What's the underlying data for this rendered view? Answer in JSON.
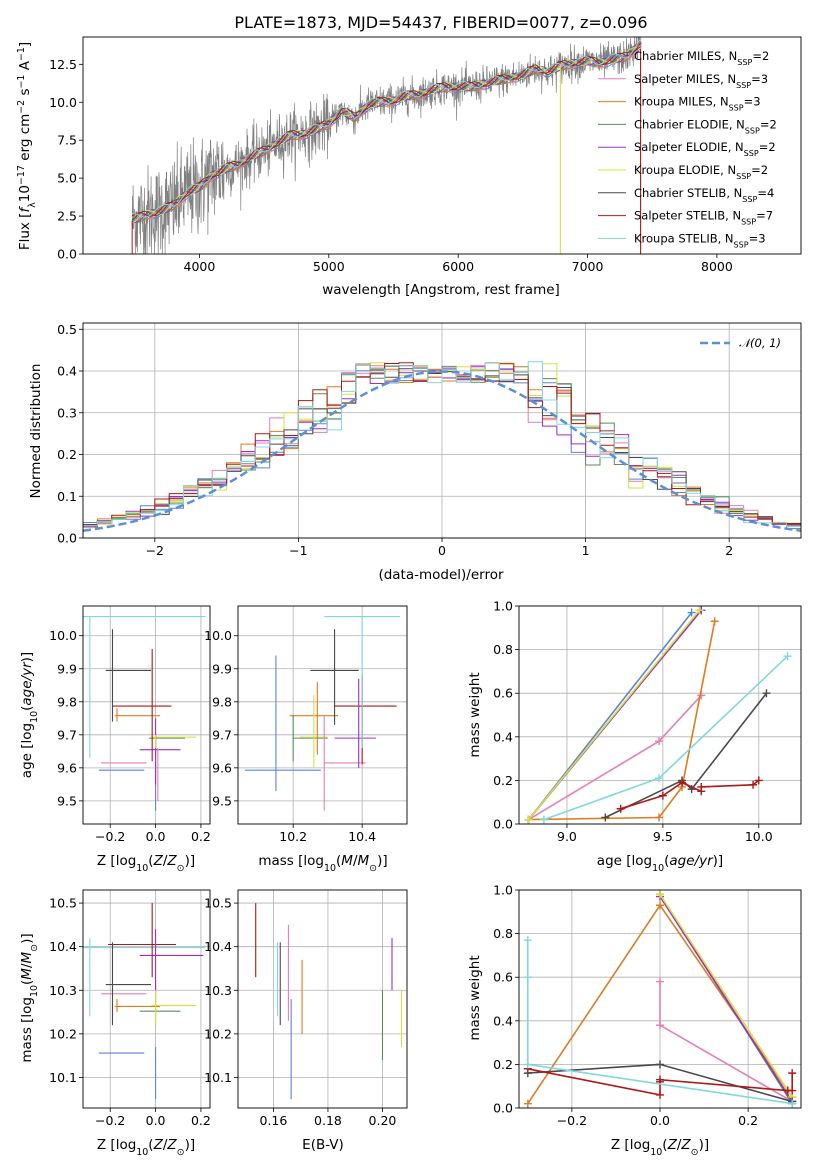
{
  "chart_data": [
    {
      "type": "line",
      "title": "PLATE=1873, MJD=54437, FIBERID=0077, z=0.096",
      "xlabel": "wavelength [Angstrom, rest frame]",
      "ylabel": "Flux [f_λ 10^-17 erg cm^-2 s^-1 A^-1]",
      "xlim": [
        3100,
        8650
      ],
      "ylim": [
        0,
        14.3
      ],
      "xticks": [
        4000,
        5000,
        6000,
        7000,
        8000
      ],
      "yticks": [
        0.0,
        2.5,
        5.0,
        7.5,
        10.0,
        12.5
      ],
      "grid": false,
      "legend_position": "top-right",
      "data_color": "#808080",
      "spectrum_anchors": {
        "x": [
          3500,
          3600,
          3700,
          3800,
          3900,
          4000,
          4100,
          4200,
          4300,
          4400,
          4500,
          4600,
          4700,
          4800,
          4900,
          5000,
          5100,
          5200,
          5300,
          5400,
          5500,
          5600,
          5700,
          5800,
          5900,
          6000,
          6100,
          6200,
          6300,
          6400,
          6500,
          6600,
          6700,
          6800,
          6900,
          7000,
          7100,
          7200,
          7300,
          7400
        ],
        "y": [
          2.3,
          2.6,
          2.8,
          3.2,
          4.0,
          4.4,
          5.2,
          5.6,
          5.9,
          6.4,
          6.8,
          7.3,
          7.8,
          7.9,
          8.2,
          8.6,
          9.4,
          9.0,
          9.8,
          10.0,
          10.1,
          10.4,
          10.5,
          10.8,
          11.0,
          11.0,
          11.0,
          11.2,
          11.4,
          11.6,
          11.8,
          12.2,
          12.0,
          12.4,
          12.6,
          12.7,
          12.6,
          12.8,
          13.0,
          13.8
        ]
      },
      "series": [
        {
          "name": "Chabrier MILES, N_SSP=2",
          "color": "#5b85d6"
        },
        {
          "name": "Salpeter MILES, N_SSP=3",
          "color": "#e67fb4"
        },
        {
          "name": "Kroupa MILES, N_SSP=3",
          "color": "#e07b20"
        },
        {
          "name": "Chabrier ELODIE, N_SSP=2",
          "color": "#5a8f5a"
        },
        {
          "name": "Salpeter ELODIE, N_SSP=2",
          "color": "#9b30c8"
        },
        {
          "name": "Kroupa ELODIE, N_SSP=2",
          "color": "#d8e03c"
        },
        {
          "name": "Chabrier STELIB, N_SSP=4",
          "color": "#4a4a4a"
        },
        {
          "name": "Salpeter STELIB, N_SSP=7",
          "color": "#b01818"
        },
        {
          "name": "Kroupa STELIB, N_SSP=3",
          "color": "#7fd8e0"
        }
      ]
    },
    {
      "type": "line",
      "xlabel": "(data-model)/error",
      "ylabel": "Normed distribution",
      "xlim": [
        -2.5,
        2.5
      ],
      "ylim": [
        0,
        0.515
      ],
      "xticks": [
        -2,
        -1,
        0,
        1,
        2
      ],
      "yticks": [
        0.0,
        0.1,
        0.2,
        0.3,
        0.4,
        0.5
      ],
      "grid": true,
      "legend_position": "top-right",
      "gaussian_label": "𝒩(0, 1)",
      "gaussian_color": "#5b8fd6",
      "histogram_bin_width": 0.1
    },
    {
      "type": "scatter",
      "xlabel": "Z [log10(Z/Z⊙)]",
      "ylabel": "age [log10(age/yr)]",
      "xlim": [
        -0.32,
        0.24
      ],
      "ylim": [
        9.43,
        10.09
      ],
      "xticks": [
        -0.2,
        0.0,
        0.2
      ],
      "yticks": [
        9.5,
        9.6,
        9.7,
        9.8,
        9.9,
        10.0
      ],
      "grid": true,
      "errorbars": [
        {
          "model": "Chabrier MILES",
          "x": -0.15,
          "xerr": 0.09,
          "y": 9.593,
          "yerr": 0.0
        },
        {
          "model": "Salpeter MILES",
          "x": -0.14,
          "xerr": 0.09,
          "y": 9.615,
          "yerr": 0.0
        },
        {
          "model": "Kroupa MILES",
          "x": -0.08,
          "xerr": 0.09,
          "y": 9.758,
          "yerr": 0.0
        },
        {
          "model": "Chabrier ELODIE",
          "x": 0.05,
          "xerr": 0.09,
          "y": 9.695,
          "yerr": 0.0
        },
        {
          "model": "Salpeter ELODIE",
          "x": 0.02,
          "xerr": 0.09,
          "y": 9.655,
          "yerr": 0.0
        },
        {
          "model": "Kroupa ELODIE",
          "x": 0.08,
          "xerr": 0.09,
          "y": 9.693,
          "yerr": 0.0
        },
        {
          "model": "Chabrier STELIB",
          "x": -0.13,
          "xerr": 0.09,
          "y": 9.895,
          "yerr": 0.0
        },
        {
          "model": "Salpeter STELIB",
          "x": -0.06,
          "xerr": 0.09,
          "y": 9.787,
          "yerr": 0.0
        },
        {
          "model": "Kroupa STELIB",
          "x": -0.04,
          "xerr": 0.09,
          "y": 10.058,
          "yerr": 0.0
        }
      ]
    },
    {
      "type": "scatter",
      "xlabel": "mass [log10(M/M⊙)]",
      "xlim": [
        10.04,
        10.53
      ],
      "ylim": [
        9.43,
        10.09
      ],
      "xticks": [
        10.2,
        10.4
      ],
      "yticks": [
        9.5,
        9.6,
        9.7,
        9.8,
        9.9,
        10.0
      ],
      "grid": true
    },
    {
      "type": "line",
      "xlabel": "age [log10(age/yr)]",
      "ylabel": "mass weight",
      "xlim": [
        8.75,
        10.22
      ],
      "ylim": [
        0,
        1.0
      ],
      "xticks": [
        9.0,
        9.5,
        10.0
      ],
      "yticks": [
        0.0,
        0.2,
        0.4,
        0.6,
        0.8,
        1.0
      ],
      "grid": true,
      "series": [
        {
          "model": "Chabrier MILES",
          "x": [
            8.8,
            9.65
          ],
          "y": [
            0.02,
            0.97
          ]
        },
        {
          "model": "Salpeter MILES",
          "x": [
            8.8,
            9.48,
            9.7
          ],
          "y": [
            0.02,
            0.38,
            0.59
          ]
        },
        {
          "model": "Kroupa MILES",
          "x": [
            8.8,
            9.48,
            9.6,
            9.77
          ],
          "y": [
            0.02,
            0.03,
            0.17,
            0.93
          ]
        },
        {
          "model": "Chabrier ELODIE",
          "x": [
            8.8,
            9.7
          ],
          "y": [
            0.02,
            0.98
          ]
        },
        {
          "model": "Salpeter ELODIE",
          "x": [
            8.8,
            9.7
          ],
          "y": [
            0.02,
            0.98
          ]
        },
        {
          "model": "Kroupa ELODIE",
          "x": [
            8.8,
            9.69
          ],
          "y": [
            0.02,
            0.98
          ]
        },
        {
          "model": "Chabrier STELIB",
          "x": [
            9.2,
            9.6,
            9.65,
            10.04
          ],
          "y": [
            0.03,
            0.2,
            0.16,
            0.6
          ]
        },
        {
          "model": "Salpeter STELIB",
          "x": [
            9.28,
            9.5,
            9.6,
            9.7,
            9.7,
            9.97,
            10.0
          ],
          "y": [
            0.07,
            0.13,
            0.19,
            0.15,
            0.17,
            0.18,
            0.2
          ]
        },
        {
          "model": "Kroupa STELIB",
          "x": [
            8.88,
            9.48,
            10.15
          ],
          "y": [
            0.02,
            0.21,
            0.77
          ]
        }
      ]
    },
    {
      "type": "scatter",
      "xlabel": "Z [log10(Z/Z⊙)]",
      "ylabel": "mass [log10(M/M⊙)]",
      "xlim": [
        -0.32,
        0.24
      ],
      "ylim": [
        10.03,
        10.53
      ],
      "xticks": [
        -0.2,
        0.0,
        0.2
      ],
      "yticks": [
        10.1,
        10.2,
        10.3,
        10.4,
        10.5
      ],
      "grid": true
    },
    {
      "type": "scatter",
      "xlabel": "E(B-V)",
      "xlim": [
        0.147,
        0.209
      ],
      "ylim": [
        10.03,
        10.53
      ],
      "xticks": [
        0.16,
        0.18,
        0.2
      ],
      "yticks": [
        10.1,
        10.2,
        10.3,
        10.4,
        10.5
      ],
      "grid": true
    },
    {
      "type": "line",
      "xlabel": "Z [log10(Z/Z⊙)]",
      "ylabel": "mass weight",
      "xlim": [
        -0.32,
        0.32
      ],
      "ylim": [
        0,
        1.0
      ],
      "xticks": [
        -0.2,
        0.0,
        0.2
      ],
      "yticks": [
        0.0,
        0.2,
        0.4,
        0.6,
        0.8,
        1.0
      ],
      "grid": true,
      "series": [
        {
          "model": "Chabrier MILES",
          "x": [
            0.0,
            0.3
          ],
          "y": [
            0.98,
            0.02
          ]
        },
        {
          "model": "Salpeter MILES",
          "x": [
            0.0,
            0.0,
            0.3
          ],
          "y": [
            0.58,
            0.38,
            0.03
          ]
        },
        {
          "model": "Kroupa MILES",
          "x": [
            -0.3,
            0.0,
            0.3
          ],
          "y": [
            0.02,
            0.93,
            0.05
          ]
        },
        {
          "model": "Chabrier ELODIE",
          "x": [
            0.0,
            0.3
          ],
          "y": [
            0.98,
            0.02
          ]
        },
        {
          "model": "Salpeter ELODIE",
          "x": [
            0.0,
            0.3
          ],
          "y": [
            0.97,
            0.03
          ]
        },
        {
          "model": "Kroupa ELODIE",
          "x": [
            0.0,
            0.3
          ],
          "y": [
            0.98,
            0.05
          ]
        },
        {
          "model": "Chabrier STELIB",
          "x": [
            -0.3,
            0.0,
            0.3
          ],
          "y": [
            0.16,
            0.2,
            0.03
          ]
        },
        {
          "model": "Salpeter STELIB",
          "x": [
            -0.3,
            0.0,
            0.0,
            0.0,
            0.29,
            0.3,
            0.3
          ],
          "y": [
            0.18,
            0.06,
            0.12,
            0.13,
            0.08,
            0.08,
            0.16
          ]
        },
        {
          "model": "Kroupa STELIB",
          "x": [
            -0.3,
            -0.3,
            -0.3,
            0.3
          ],
          "y": [
            0.77,
            0.6,
            0.2,
            0.02
          ]
        }
      ]
    }
  ]
}
